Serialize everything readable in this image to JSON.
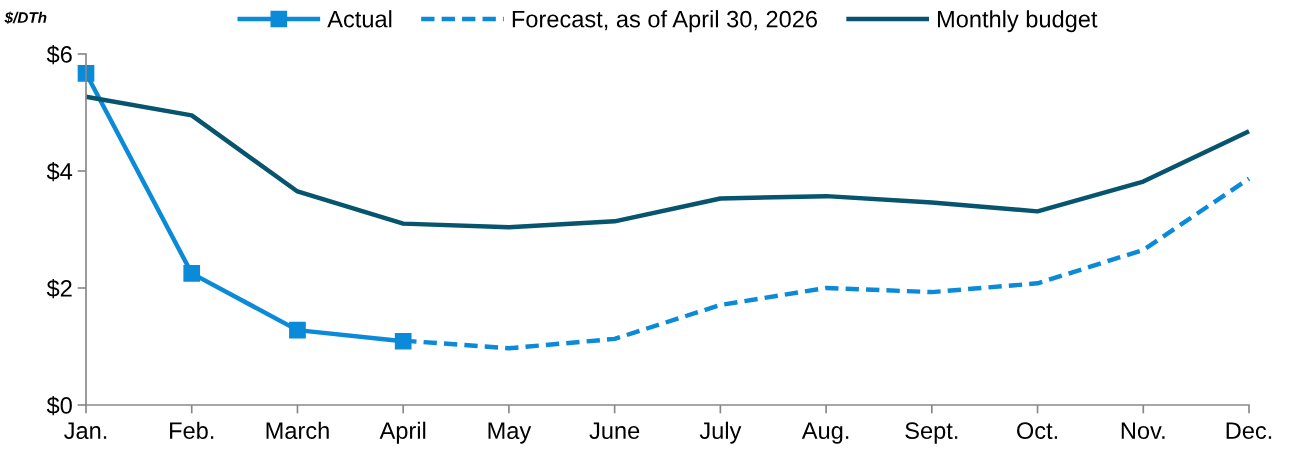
{
  "chart_data": {
    "type": "line",
    "ylabel": "$/DTh",
    "categories": [
      "Jan.",
      "Feb.",
      "March",
      "April",
      "May",
      "June",
      "July",
      "Aug.",
      "Sept.",
      "Oct.",
      "Nov.",
      "Dec."
    ],
    "series": [
      {
        "name": "Actual",
        "color": "#0a8ad8",
        "marker": "square",
        "line_style": "solid",
        "values": [
          5.67,
          2.25,
          1.28,
          1.09,
          null,
          null,
          null,
          null,
          null,
          null,
          null,
          null
        ]
      },
      {
        "name": "Forecast, as of April 30, 2026",
        "color": "#0a8ad8",
        "marker": "none",
        "line_style": "dashed",
        "values": [
          null,
          null,
          null,
          1.1,
          0.97,
          1.13,
          1.71,
          2.0,
          1.93,
          2.08,
          2.65,
          3.87
        ]
      },
      {
        "name": "Monthly budget",
        "color": "#06546e",
        "marker": "none",
        "line_style": "solid",
        "values": [
          5.27,
          4.95,
          3.65,
          3.1,
          3.04,
          3.14,
          3.53,
          3.57,
          3.46,
          3.31,
          3.82,
          4.68
        ]
      }
    ],
    "ylim": [
      0,
      6
    ],
    "yticks": [
      {
        "value": 0,
        "label": "$0"
      },
      {
        "value": 2,
        "label": "$2"
      },
      {
        "value": 4,
        "label": "$4"
      },
      {
        "value": 6,
        "label": "$6"
      }
    ],
    "grid": false,
    "legend": "top"
  }
}
